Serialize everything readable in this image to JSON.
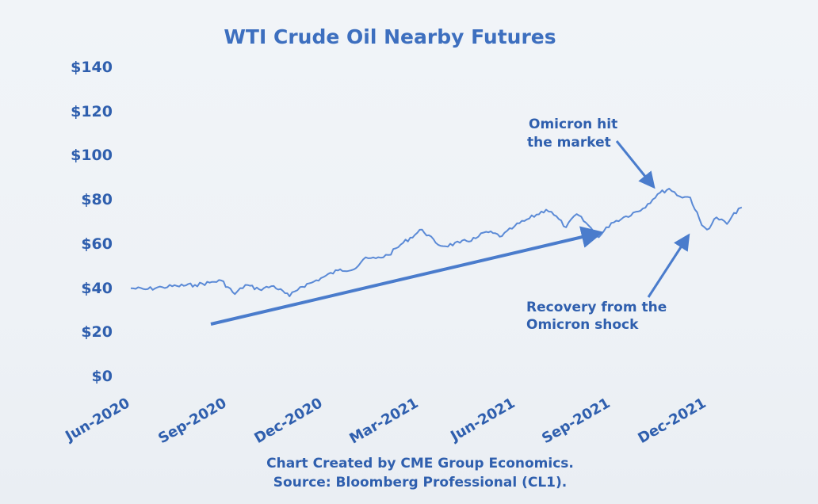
{
  "chart_data": {
    "type": "line",
    "title": "WTI Crude Oil Nearby Futures",
    "xlabel": "",
    "ylabel": "",
    "ylim": [
      0,
      140
    ],
    "y_ticks": [
      "$140",
      "$120",
      "$100",
      "$80",
      "$60",
      "$40",
      "$20",
      "$0"
    ],
    "x_tick_labels": [
      "Jun-2020",
      "Sep-2020",
      "Dec-2020",
      "Mar-2021",
      "Jun-2021",
      "Sep-2021",
      "Dec-2021"
    ],
    "series": [
      {
        "values": [
          [
            "2020-06-01",
            39.5
          ],
          [
            "2020-06-15",
            39.0
          ],
          [
            "2020-07-01",
            40.0
          ],
          [
            "2020-07-15",
            40.5
          ],
          [
            "2020-08-01",
            41.0
          ],
          [
            "2020-08-15",
            42.0
          ],
          [
            "2020-08-26",
            43.0
          ],
          [
            "2020-09-08",
            36.8
          ],
          [
            "2020-09-18",
            41.0
          ],
          [
            "2020-10-01",
            39.0
          ],
          [
            "2020-10-15",
            40.5
          ],
          [
            "2020-10-30",
            35.8
          ],
          [
            "2020-11-09",
            40.0
          ],
          [
            "2020-11-20",
            42.0
          ],
          [
            "2020-12-01",
            44.5
          ],
          [
            "2020-12-15",
            47.5
          ],
          [
            "2021-01-01",
            48.5
          ],
          [
            "2021-01-08",
            52.5
          ],
          [
            "2021-01-20",
            53.0
          ],
          [
            "2021-02-01",
            54.5
          ],
          [
            "2021-02-15",
            60.0
          ],
          [
            "2021-03-05",
            66.0
          ],
          [
            "2021-03-18",
            60.0
          ],
          [
            "2021-03-25",
            58.5
          ],
          [
            "2021-04-10",
            60.0
          ],
          [
            "2021-04-25",
            62.0
          ],
          [
            "2021-05-05",
            65.0
          ],
          [
            "2021-05-20",
            63.0
          ],
          [
            "2021-06-01",
            67.5
          ],
          [
            "2021-06-15",
            71.0
          ],
          [
            "2021-07-01",
            75.0
          ],
          [
            "2021-07-06",
            74.0
          ],
          [
            "2021-07-20",
            67.0
          ],
          [
            "2021-07-30",
            73.0
          ],
          [
            "2021-08-10",
            68.0
          ],
          [
            "2021-08-20",
            62.5
          ],
          [
            "2021-09-01",
            69.0
          ],
          [
            "2021-09-15",
            72.0
          ],
          [
            "2021-10-01",
            75.5
          ],
          [
            "2021-10-15",
            82.0
          ],
          [
            "2021-10-26",
            84.5
          ],
          [
            "2021-11-05",
            81.0
          ],
          [
            "2021-11-15",
            80.5
          ],
          [
            "2021-11-26",
            68.0
          ],
          [
            "2021-12-01",
            66.0
          ],
          [
            "2021-12-10",
            71.5
          ],
          [
            "2021-12-20",
            68.5
          ],
          [
            "2021-12-31",
            75.5
          ],
          [
            "2022-01-03",
            76.0
          ]
        ]
      }
    ],
    "annotations": [
      {
        "text_lines": [
          "Omicron hit",
          "the market"
        ]
      },
      {
        "text_lines": [
          "Recovery from the",
          "Omicron shock"
        ]
      }
    ],
    "source_lines": [
      "Chart Created by CME Group Economics.",
      "Source:  Bloomberg Professional (CL1)."
    ],
    "grid": false,
    "legend": "none",
    "colors": {
      "line": "#5b8ad6",
      "text": "#2f5fae",
      "title": "#3d6fbf",
      "arrow": "#4a7ccc"
    }
  }
}
